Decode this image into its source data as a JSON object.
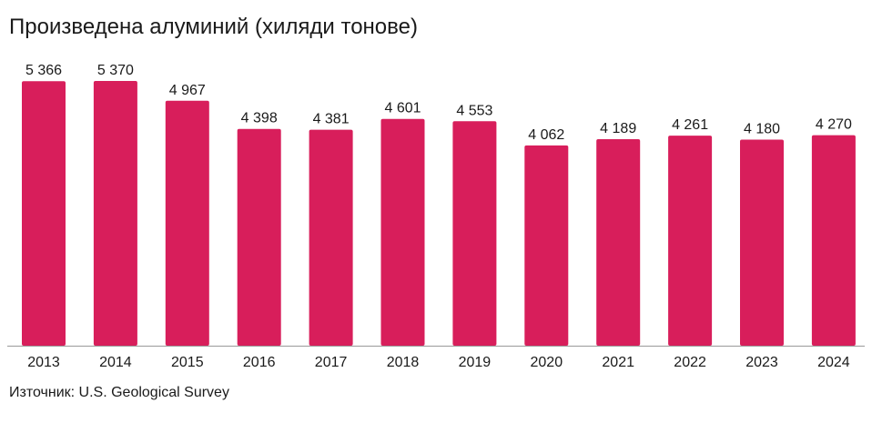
{
  "title": "Произведена алуминий (хиляди тонове)",
  "source": "Източник: U.S. Geological Survey",
  "colors": {
    "bar": "#d81e5b",
    "axis": "#999999",
    "text": "#1a1a1a"
  },
  "chart_data": {
    "type": "bar",
    "title": "Произведена алуминий (хиляди тонове)",
    "xlabel": "",
    "ylabel": "",
    "ylim": [
      0,
      5370
    ],
    "grid": false,
    "categories": [
      "2013",
      "2014",
      "2015",
      "2016",
      "2017",
      "2018",
      "2019",
      "2020",
      "2021",
      "2022",
      "2023",
      "2024"
    ],
    "values": [
      5366,
      5370,
      4967,
      4398,
      4381,
      4601,
      4553,
      4062,
      4189,
      4261,
      4180,
      4270
    ],
    "data_labels": [
      "5 366",
      "5 370",
      "4 967",
      "4 398",
      "4 381",
      "4 601",
      "4 553",
      "4 062",
      "4 189",
      "4 261",
      "4 180",
      "4 270"
    ]
  }
}
